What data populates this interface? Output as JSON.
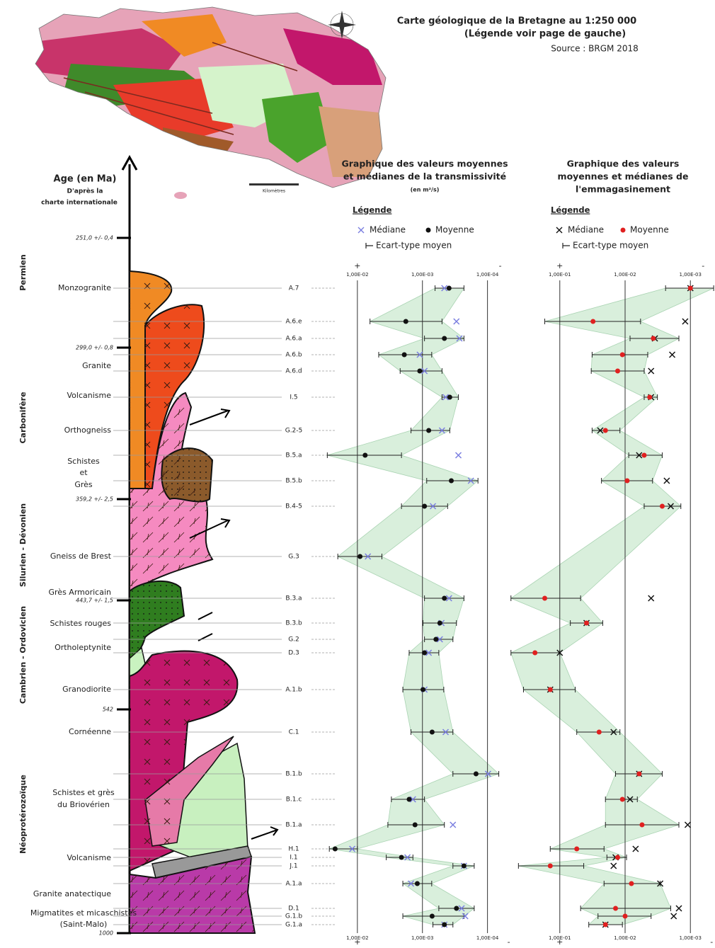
{
  "header": {
    "title": "Carte géologique de la Bretagne au 1:250 000",
    "subtitle": "(Légende voir page de gauche)",
    "source": "Source : BRGM 2018"
  },
  "map": {
    "scale_label": "Kilomètres"
  },
  "age_axis": {
    "title": "Age (en Ma)",
    "subtitle": [
      "D'après la",
      "charte internationale"
    ],
    "ticks": [
      "251,0 +/- 0,4",
      "299,0 +/- 0,8",
      "359,2 +/- 2,5",
      "443,7 +/- 1,5",
      "542",
      "1000"
    ]
  },
  "periods": [
    "Permien",
    "Carbonifère",
    "Silurien - Dévonien",
    "Cambrien - Ordovicien",
    "Néoprotérozoïque"
  ],
  "lithologies": [
    [
      "Monzogranite"
    ],
    [
      "Granite"
    ],
    [
      "Volcanisme"
    ],
    [
      "Orthogneiss"
    ],
    [
      "Schistes",
      "et",
      "Grès"
    ],
    [
      "Gneiss de Brest"
    ],
    [
      "Grès Armoricain"
    ],
    [
      "Schistes rouges"
    ],
    [
      "Ortholeptynite"
    ],
    [
      "Granodiorite"
    ],
    [
      "Cornéenne"
    ],
    [
      "Schistes et grès",
      "du Briovérien"
    ],
    [
      "Volcanisme"
    ],
    [
      "Granite anatectique"
    ],
    [
      "Migmatites et micaschistes",
      "(Saint-Malo)"
    ]
  ],
  "chart_data": [
    {
      "type": "dot",
      "title": [
        "Graphique des valeurs moyennes",
        "et médianes de la transmissivité"
      ],
      "unit": "(en m²/s)",
      "scale": "log",
      "xlim": [
        0.03,
        6e-05
      ],
      "xticks": [
        {
          "value": 0.01,
          "label": "1,00E-02"
        },
        {
          "value": 0.001,
          "label": "1,00E-03"
        },
        {
          "value": 0.0001,
          "label": "1,00E-04"
        }
      ],
      "more_label": "+",
      "less_label": "-",
      "legend_title": "Légende",
      "categories": [
        "A.7",
        "A.6.e",
        "A.6.a",
        "A.6.b",
        "A.6.d",
        "I.5",
        "G.2-5",
        "B.5.a",
        "B.5.b",
        "B.4-5",
        "G.3",
        "B.3.a",
        "B.3.b",
        "G.2",
        "D.3",
        "A.1.b",
        "C.1",
        "B.1.b",
        "B.1.c",
        "B.1.a",
        "H.1",
        "I.1",
        "J.1",
        "A.1.a",
        "D.1",
        "G.1.b",
        "G.1.a"
      ],
      "series": [
        {
          "name": "Médiane",
          "marker": "cross",
          "color": "#7b7fe0",
          "values": [
            0.00046,
            0.0003,
            0.00027,
            0.0011,
            0.00093,
            0.00044,
            0.0005,
            0.00028,
            0.00018,
            0.00069,
            0.0069,
            0.00039,
            0.00051,
            0.00054,
            0.0008,
            0.00093,
            0.00044,
            9.8e-05,
            0.0014,
            0.00034,
            0.012,
            0.0017,
            0.00023,
            0.0015,
            0.00025,
            0.00022,
            0.00046
          ]
        },
        {
          "name": "Moyenne",
          "marker": "dot",
          "color": "#111111",
          "values": [
            0.00039,
            0.0018,
            0.00046,
            0.0019,
            0.0011,
            0.00038,
            0.0008,
            0.0076,
            0.00036,
            0.00093,
            0.0091,
            0.00046,
            0.00054,
            0.00062,
            0.00093,
            0.00098,
            0.00071,
            0.00015,
            0.0016,
            0.0013,
            0.022,
            0.0021,
            0.00023,
            0.0012,
            0.0003,
            0.00071,
            0.00046
          ]
        }
      ],
      "error": {
        "name": "Ecart-type moyen",
        "color": "#222222",
        "high": [
          0.00064,
          0.0064,
          0.00093,
          0.0047,
          0.0022,
          0.0005,
          0.0015,
          0.029,
          0.00086,
          0.0021,
          0.02,
          0.00093,
          0.00098,
          0.00093,
          0.0016,
          0.002,
          0.0015,
          0.00034,
          0.003,
          0.0034,
          0.027,
          0.0036,
          0.00034,
          0.002,
          0.00056,
          0.002,
          0.00069
        ],
        "low": [
          0.00023,
          0.0005,
          0.00023,
          0.00072,
          0.0005,
          0.00028,
          0.00038,
          0.0021,
          0.00014,
          0.00041,
          0.0042,
          0.00023,
          0.0003,
          0.00034,
          0.00056,
          0.00047,
          0.00034,
          6.7e-05,
          0.00093,
          0.00046,
          0.01,
          0.0014,
          0.00016,
          0.00072,
          0.00016,
          0.00023,
          0.00034
        ]
      },
      "band_color": "#d9efdc"
    },
    {
      "type": "dot",
      "title": [
        "Graphique des valeurs",
        "moyennes et médianes de",
        "l'emmagasinement"
      ],
      "scale": "log",
      "xlim": [
        0.6,
        0.0005
      ],
      "xticks": [
        {
          "value": 0.1,
          "label": "1,00E-01"
        },
        {
          "value": 0.01,
          "label": "1,00E-02"
        },
        {
          "value": 0.001,
          "label": "1,00E-03"
        }
      ],
      "more_label": "+",
      "less_label": "-",
      "legend_title": "Légende",
      "series": [
        {
          "name": "Médiane",
          "marker": "cross",
          "color": "#111111",
          "values": [
            0.001,
            0.0012,
            0.0035,
            0.0019,
            0.004,
            0.004,
            0.024,
            0.0061,
            0.0023,
            0.002,
            null,
            0.004,
            0.039,
            null,
            0.1,
            0.14,
            0.015,
            0.0061,
            0.0084,
            0.0011,
            0.0069,
            0.014,
            0.015,
            0.0029,
            0.0015,
            0.0018,
            0.02
          ]
        },
        {
          "name": "Moyenne",
          "marker": "dot",
          "color": "#e02020",
          "values": [
            0.001,
            0.031,
            0.0037,
            0.011,
            0.013,
            0.0042,
            0.02,
            0.0051,
            0.0093,
            0.0027,
            null,
            0.17,
            0.039,
            null,
            0.24,
            0.14,
            0.025,
            0.0061,
            0.011,
            0.0055,
            0.055,
            0.013,
            0.14,
            0.008,
            0.014,
            0.01,
            0.02
          ]
        }
      ],
      "error": {
        "name": "Ecart-type moyen",
        "color": "#222222",
        "high": [
          0.0024,
          0.17,
          0.0084,
          0.032,
          0.033,
          0.0051,
          0.032,
          0.0088,
          0.023,
          0.0051,
          null,
          0.56,
          0.069,
          null,
          0.56,
          0.36,
          0.055,
          0.014,
          0.02,
          0.02,
          0.14,
          0.019,
          0.43,
          0.021,
          0.048,
          0.026,
          0.036
        ],
        "low": [
          0.00044,
          0.0058,
          0.0015,
          0.0045,
          0.0051,
          0.0032,
          0.012,
          0.0027,
          0.0038,
          0.0014,
          null,
          0.048,
          0.022,
          null,
          0.1,
          0.058,
          0.012,
          0.0027,
          0.0065,
          0.0015,
          0.021,
          0.0095,
          0.043,
          0.0029,
          0.002,
          0.004,
          0.011
        ]
      },
      "band_color": "#d9efdc"
    }
  ]
}
